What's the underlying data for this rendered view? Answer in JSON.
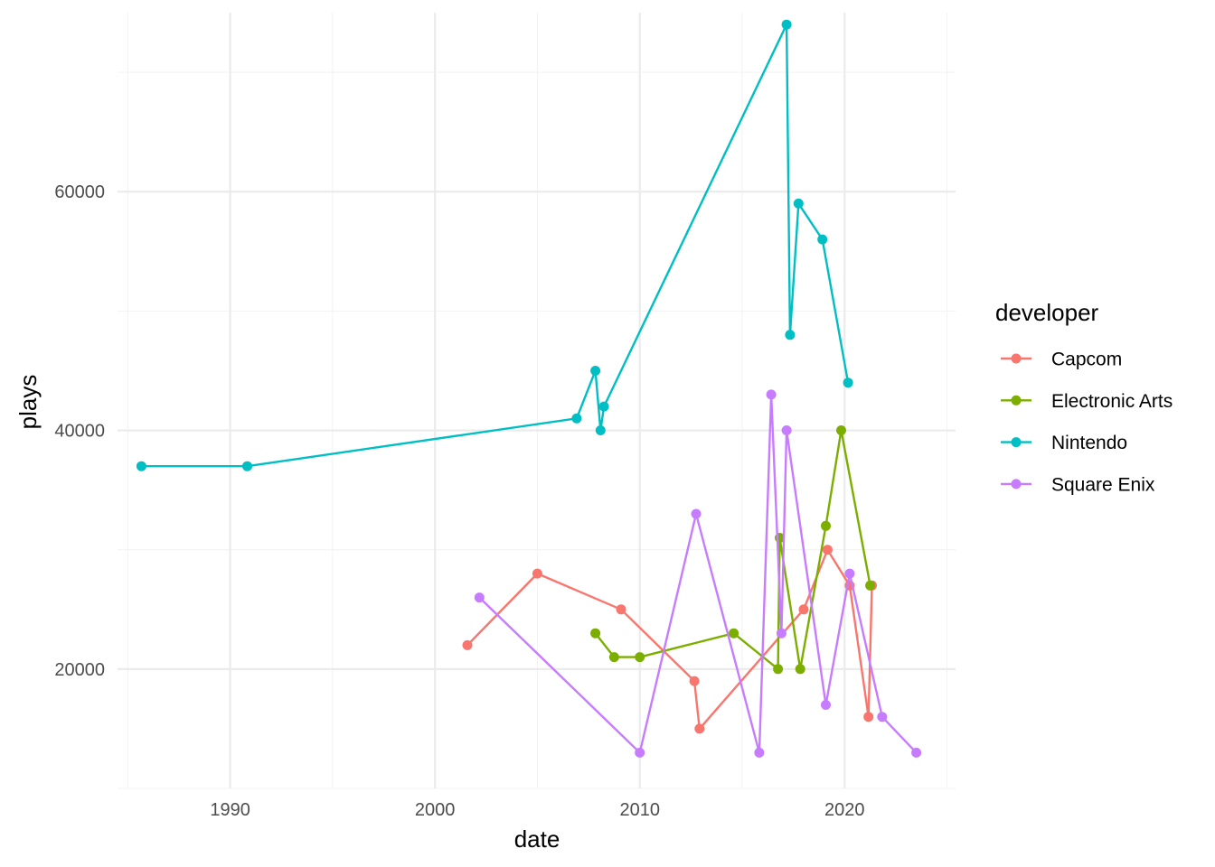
{
  "chart_data": {
    "type": "line",
    "xlabel": "date",
    "ylabel": "plays",
    "x_ticks": [
      "1990",
      "2000",
      "2010",
      "2020"
    ],
    "y_ticks": [
      "20000",
      "40000",
      "60000"
    ],
    "xlim": [
      "1984-07-01",
      "2025-06-01"
    ],
    "ylim": [
      10000,
      75000
    ],
    "grid": true,
    "legend_title": "developer",
    "legend_position": "right",
    "series": [
      {
        "name": "Capcom",
        "color": "#F8766D",
        "points": [
          {
            "date": "2001-08-01",
            "plays": 22000
          },
          {
            "date": "2005-01-01",
            "plays": 28000
          },
          {
            "date": "2009-02-01",
            "plays": 25000
          },
          {
            "date": "2012-09-01",
            "plays": 19000
          },
          {
            "date": "2012-12-01",
            "plays": 15000
          },
          {
            "date": "2018-01-01",
            "plays": 25000
          },
          {
            "date": "2019-03-01",
            "plays": 30000
          },
          {
            "date": "2020-04-01",
            "plays": 27000
          },
          {
            "date": "2021-03-01",
            "plays": 16000
          },
          {
            "date": "2021-05-01",
            "plays": 27000
          }
        ]
      },
      {
        "name": "Electronic Arts",
        "color": "#7CAE00",
        "points": [
          {
            "date": "2007-11-01",
            "plays": 23000
          },
          {
            "date": "2008-10-01",
            "plays": 21000
          },
          {
            "date": "2010-01-01",
            "plays": 21000
          },
          {
            "date": "2014-08-01",
            "plays": 23000
          },
          {
            "date": "2016-10-01",
            "plays": 20000
          },
          {
            "date": "2016-11-01",
            "plays": 31000
          },
          {
            "date": "2017-11-01",
            "plays": 20000
          },
          {
            "date": "2019-02-01",
            "plays": 32000
          },
          {
            "date": "2019-11-01",
            "plays": 40000
          },
          {
            "date": "2021-04-01",
            "plays": 27000
          }
        ]
      },
      {
        "name": "Nintendo",
        "color": "#00BFC4",
        "points": [
          {
            "date": "1985-09-01",
            "plays": 37000
          },
          {
            "date": "1990-11-01",
            "plays": 37000
          },
          {
            "date": "2006-12-01",
            "plays": 41000
          },
          {
            "date": "2007-11-01",
            "plays": 45000
          },
          {
            "date": "2008-02-01",
            "plays": 40000
          },
          {
            "date": "2008-04-01",
            "plays": 42000
          },
          {
            "date": "2017-03-01",
            "plays": 74000
          },
          {
            "date": "2017-05-01",
            "plays": 48000
          },
          {
            "date": "2017-10-01",
            "plays": 59000
          },
          {
            "date": "2018-12-01",
            "plays": 56000
          },
          {
            "date": "2020-03-01",
            "plays": 44000
          }
        ]
      },
      {
        "name": "Square Enix",
        "color": "#C77CFF",
        "points": [
          {
            "date": "2002-03-01",
            "plays": 26000
          },
          {
            "date": "2010-01-01",
            "plays": 13000
          },
          {
            "date": "2012-10-01",
            "plays": 33000
          },
          {
            "date": "2015-11-01",
            "plays": 13000
          },
          {
            "date": "2016-06-01",
            "plays": 43000
          },
          {
            "date": "2016-12-01",
            "plays": 23000
          },
          {
            "date": "2017-03-01",
            "plays": 40000
          },
          {
            "date": "2019-02-01",
            "plays": 17000
          },
          {
            "date": "2020-04-01",
            "plays": 28000
          },
          {
            "date": "2021-11-01",
            "plays": 16000
          },
          {
            "date": "2023-07-01",
            "plays": 13000
          }
        ]
      }
    ]
  }
}
